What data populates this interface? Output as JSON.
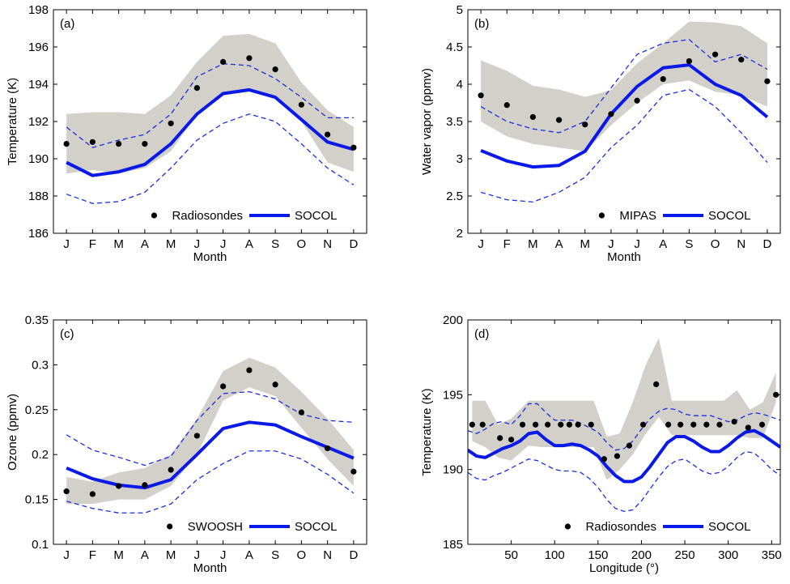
{
  "chart_data": [
    {
      "panel": "(a)",
      "type": "line",
      "xlabel": "Month",
      "ylabel": "Temperature (K)",
      "x": [
        1,
        2,
        3,
        4,
        5,
        6,
        7,
        8,
        9,
        10,
        11,
        12
      ],
      "xtick_labels": [
        "J",
        "F",
        "M",
        "A",
        "M",
        "J",
        "J",
        "A",
        "S",
        "O",
        "N",
        "D"
      ],
      "xlim": [
        0.5,
        12.5
      ],
      "ylim": [
        186,
        198
      ],
      "yticks": [
        186,
        188,
        190,
        192,
        194,
        196,
        198
      ],
      "ytick_labels": [
        "186",
        "188",
        "190",
        "192",
        "194",
        "196",
        "198"
      ],
      "band": {
        "lower": [
          189.2,
          189.4,
          189.2,
          189.5,
          190.4,
          192.4,
          193.4,
          193.6,
          193.3,
          192.0,
          189.8,
          189.3
        ],
        "upper": [
          192.4,
          192.5,
          192.5,
          192.4,
          193.4,
          195.2,
          196.6,
          196.7,
          196.2,
          194.1,
          192.6,
          191.7
        ]
      },
      "dashed_upper": [
        191.7,
        190.6,
        191.0,
        191.3,
        192.4,
        194.4,
        195.1,
        195.0,
        194.3,
        193.3,
        192.2,
        192.2
      ],
      "dashed_lower": [
        188.1,
        187.6,
        187.7,
        188.2,
        189.5,
        191.0,
        191.9,
        192.4,
        192.0,
        190.8,
        189.5,
        188.6
      ],
      "series": [
        {
          "name": "Radiosondes",
          "style": "points",
          "values": [
            190.8,
            190.9,
            190.8,
            190.8,
            191.9,
            193.8,
            195.2,
            195.4,
            194.8,
            192.9,
            191.3,
            190.6
          ]
        },
        {
          "name": "SOCOL",
          "style": "line",
          "values": [
            189.8,
            189.1,
            189.3,
            189.7,
            190.8,
            192.4,
            193.5,
            193.7,
            193.3,
            192.1,
            190.9,
            190.5
          ]
        }
      ],
      "legend": "bottom-right"
    },
    {
      "panel": "(b)",
      "type": "line",
      "xlabel": "Month",
      "ylabel": "Water vapor (ppmv)",
      "x": [
        1,
        2,
        3,
        4,
        5,
        6,
        7,
        8,
        9,
        10,
        11,
        12
      ],
      "xtick_labels": [
        "J",
        "F",
        "M",
        "A",
        "M",
        "J",
        "J",
        "A",
        "S",
        "O",
        "N",
        "D"
      ],
      "xlim": [
        0.5,
        12.5
      ],
      "ylim": [
        2,
        5
      ],
      "yticks": [
        2,
        2.5,
        3,
        3.5,
        4,
        4.5,
        5
      ],
      "ytick_labels": [
        "2",
        "2.5",
        "3",
        "3.5",
        "4",
        "4.5",
        "5"
      ],
      "band": {
        "lower": [
          3.5,
          3.3,
          3.2,
          3.15,
          3.1,
          3.45,
          3.75,
          4.0,
          4.05,
          3.9,
          3.85,
          3.7
        ],
        "upper": [
          4.32,
          4.18,
          3.98,
          3.93,
          3.83,
          3.92,
          4.28,
          4.55,
          4.84,
          4.83,
          4.78,
          4.55
        ]
      },
      "dashed_upper": [
        3.7,
        3.5,
        3.4,
        3.35,
        3.5,
        3.95,
        4.4,
        4.55,
        4.6,
        4.3,
        4.4,
        4.2
      ],
      "dashed_lower": [
        2.55,
        2.45,
        2.42,
        2.55,
        2.75,
        3.15,
        3.45,
        3.85,
        3.93,
        3.7,
        3.35,
        2.95
      ],
      "series": [
        {
          "name": "MIPAS",
          "style": "points",
          "values": [
            3.85,
            3.72,
            3.56,
            3.52,
            3.46,
            3.6,
            3.78,
            4.07,
            4.31,
            4.4,
            4.33,
            4.04
          ]
        },
        {
          "name": "SOCOL",
          "style": "line",
          "values": [
            3.11,
            2.97,
            2.89,
            2.91,
            3.1,
            3.6,
            3.97,
            4.22,
            4.26,
            4.0,
            3.85,
            3.56
          ]
        }
      ],
      "legend": "bottom-right"
    },
    {
      "panel": "(c)",
      "type": "line",
      "xlabel": "Month",
      "ylabel": "Ozone (ppmv)",
      "x": [
        1,
        2,
        3,
        4,
        5,
        6,
        7,
        8,
        9,
        10,
        11,
        12
      ],
      "xtick_labels": [
        "J",
        "F",
        "M",
        "A",
        "M",
        "J",
        "J",
        "A",
        "S",
        "O",
        "N",
        "D"
      ],
      "xlim": [
        0.5,
        12.5
      ],
      "ylim": [
        0.1,
        0.35
      ],
      "yticks": [
        0.1,
        0.15,
        0.2,
        0.25,
        0.3,
        0.35
      ],
      "ytick_labels": [
        "0.1",
        "0.15",
        "0.2",
        "0.25",
        "0.3",
        "0.35"
      ],
      "band": {
        "lower": [
          0.145,
          0.145,
          0.15,
          0.15,
          0.165,
          0.2,
          0.26,
          0.275,
          0.265,
          0.23,
          0.195,
          0.165
        ],
        "upper": [
          0.175,
          0.17,
          0.18,
          0.185,
          0.2,
          0.24,
          0.293,
          0.308,
          0.297,
          0.27,
          0.24,
          0.205
        ]
      },
      "dashed_upper": [
        0.222,
        0.205,
        0.197,
        0.188,
        0.198,
        0.238,
        0.268,
        0.27,
        0.262,
        0.245,
        0.238,
        0.236
      ],
      "dashed_lower": [
        0.148,
        0.14,
        0.135,
        0.135,
        0.145,
        0.172,
        0.19,
        0.204,
        0.204,
        0.195,
        0.178,
        0.157
      ],
      "series": [
        {
          "name": "SWOOSH",
          "style": "points",
          "values": [
            0.159,
            0.156,
            0.165,
            0.166,
            0.183,
            0.221,
            0.276,
            0.294,
            0.278,
            0.247,
            0.207,
            0.181
          ]
        },
        {
          "name": "SOCOL",
          "style": "line",
          "values": [
            0.185,
            0.173,
            0.166,
            0.163,
            0.172,
            0.2,
            0.229,
            0.236,
            0.233,
            0.22,
            0.208,
            0.196
          ]
        }
      ],
      "legend": "bottom-right"
    },
    {
      "panel": "(d)",
      "type": "line",
      "xlabel": "Longitude (°)",
      "ylabel": "Temperature (K)",
      "xlim": [
        0,
        360
      ],
      "ylim": [
        185,
        200
      ],
      "xticks": [
        50,
        100,
        150,
        200,
        250,
        300,
        350
      ],
      "xtick_labels": [
        "50",
        "100",
        "150",
        "200",
        "250",
        "300",
        "350"
      ],
      "yticks": [
        185,
        190,
        195,
        200
      ],
      "ytick_labels": [
        "185",
        "190",
        "195",
        "200"
      ],
      "band_x": [
        5,
        20,
        35,
        50,
        70,
        85,
        100,
        115,
        130,
        145,
        160,
        175,
        190,
        205,
        220,
        235,
        250,
        265,
        280,
        295,
        310,
        325,
        340,
        355
      ],
      "band": {
        "lower": [
          191.9,
          191.5,
          190.8,
          190.6,
          191.6,
          191.5,
          191.5,
          191.5,
          191.5,
          191.5,
          189.3,
          190.0,
          191.0,
          192.4,
          193.5,
          192.3,
          192.3,
          192.3,
          192.3,
          192.3,
          192.3,
          192.1,
          192.1,
          194.5
        ],
        "upper": [
          194.6,
          194.6,
          193.0,
          193.4,
          194.6,
          194.6,
          194.6,
          194.6,
          194.6,
          194.6,
          192.2,
          192.4,
          194.5,
          197.0,
          198.8,
          194.6,
          194.6,
          194.6,
          194.6,
          194.6,
          195.3,
          194.0,
          194.5,
          196.5
        ]
      },
      "curve_x": [
        0,
        10,
        20,
        30,
        40,
        50,
        60,
        70,
        80,
        90,
        100,
        110,
        120,
        130,
        140,
        150,
        160,
        170,
        180,
        190,
        200,
        210,
        220,
        230,
        240,
        250,
        260,
        270,
        280,
        290,
        300,
        310,
        320,
        330,
        340,
        350,
        360
      ],
      "dashed_upper": [
        192.6,
        192.4,
        192.7,
        193.1,
        193.2,
        193.0,
        193.6,
        194.4,
        194.4,
        193.8,
        193.3,
        193.3,
        193.3,
        193.1,
        192.8,
        192.5,
        191.8,
        191.3,
        191.4,
        191.9,
        192.7,
        193.4,
        193.9,
        194.1,
        194.0,
        193.7,
        193.6,
        193.6,
        193.6,
        193.4,
        193.2,
        193.3,
        193.6,
        193.8,
        193.7,
        193.5,
        193.3
      ],
      "dashed_lower": [
        189.8,
        189.4,
        189.3,
        189.6,
        189.8,
        190.1,
        190.4,
        190.7,
        190.6,
        190.3,
        190.0,
        189.9,
        189.9,
        189.8,
        189.4,
        188.8,
        188.0,
        187.4,
        187.2,
        187.3,
        187.9,
        188.7,
        189.5,
        190.2,
        190.6,
        190.7,
        190.3,
        189.9,
        189.7,
        189.8,
        190.2,
        190.8,
        191.2,
        191.1,
        190.6,
        190.0,
        189.6
      ],
      "series": [
        {
          "name": "Radiosondes",
          "style": "points",
          "x": [
            5,
            17,
            37,
            50,
            63,
            78,
            92,
            107,
            117,
            127,
            142,
            157,
            172,
            186,
            202,
            217,
            231,
            245,
            260,
            275,
            290,
            307,
            323,
            339,
            355
          ],
          "values": [
            193.0,
            193.0,
            192.1,
            192.0,
            193.0,
            193.0,
            193.0,
            193.0,
            193.0,
            193.0,
            193.0,
            190.7,
            190.9,
            191.6,
            193.0,
            195.7,
            193.0,
            193.0,
            193.0,
            193.0,
            193.0,
            193.2,
            192.8,
            193.0,
            195.0
          ]
        },
        {
          "name": "SOCOL",
          "style": "line",
          "x": [
            0,
            10,
            20,
            30,
            40,
            50,
            60,
            70,
            80,
            90,
            100,
            110,
            120,
            130,
            140,
            150,
            160,
            170,
            180,
            190,
            200,
            210,
            220,
            230,
            240,
            250,
            260,
            270,
            280,
            290,
            300,
            310,
            320,
            330,
            340,
            350,
            360
          ],
          "values": [
            191.3,
            190.9,
            190.8,
            191.1,
            191.4,
            191.6,
            191.9,
            192.4,
            192.5,
            192.0,
            191.6,
            191.6,
            191.7,
            191.6,
            191.3,
            190.9,
            190.2,
            189.6,
            189.2,
            189.2,
            189.5,
            190.2,
            191.0,
            191.8,
            192.2,
            192.2,
            191.9,
            191.5,
            191.2,
            191.2,
            191.6,
            192.1,
            192.5,
            192.6,
            192.3,
            191.9,
            191.5
          ]
        }
      ],
      "legend": "bottom-right"
    }
  ],
  "colors": {
    "band": "#d3d0ca",
    "socol": "#0a1ae6",
    "dashed": "#1a2de0",
    "points": "#000000",
    "axes": "#000000"
  }
}
